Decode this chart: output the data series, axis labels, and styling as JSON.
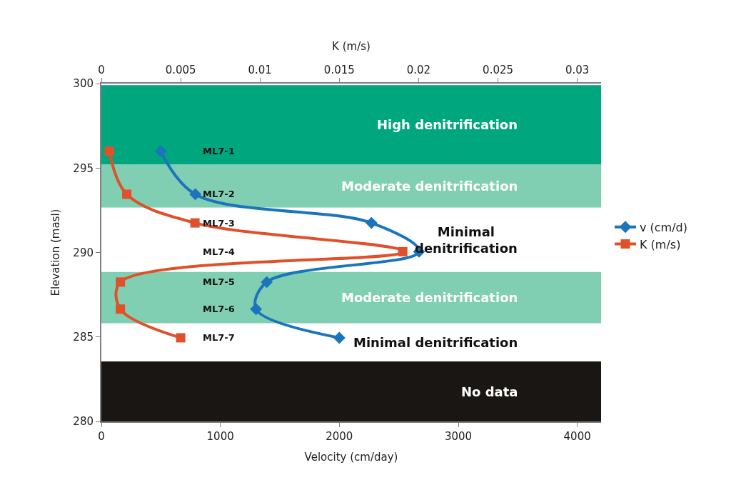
{
  "chart_data": {
    "type": "line",
    "orientation": "horizontal",
    "xlabel": "Velocity (cm/day)",
    "x2label": "K (m/s)",
    "ylabel": "Elevation (masl)",
    "xlim": [
      0,
      4200
    ],
    "xticks": [
      0,
      1000,
      2000,
      3000,
      4000
    ],
    "x2lim": [
      0,
      0.0315
    ],
    "x2ticks": [
      0,
      0.005,
      0.01,
      0.015,
      0.02,
      0.025,
      0.03
    ],
    "ylim": [
      280,
      300
    ],
    "yticks": [
      280,
      285,
      290,
      295,
      300
    ],
    "series": [
      {
        "name": "v (cm/d)",
        "color": "#1b75bc",
        "marker": "diamond",
        "x": [
          296,
          293.45,
          291.75,
          290.05,
          288.25,
          286.65,
          284.95
        ],
        "values": [
          500,
          790,
          2270,
          2670,
          1390,
          1300,
          2000
        ]
      },
      {
        "name": "K (m/s)",
        "color": "#e0502a",
        "marker": "square",
        "axis": "x2",
        "x": [
          296,
          293.45,
          291.75,
          290.05,
          288.25,
          286.65,
          284.95
        ],
        "values": [
          0.0005,
          0.0016,
          0.0059,
          0.019,
          0.0012,
          0.0012,
          0.005
        ]
      }
    ],
    "bands": [
      {
        "axis": "y",
        "from": 295.2,
        "to": 299.9,
        "label": "High denitrification",
        "color": "#00a77e"
      },
      {
        "axis": "y",
        "from": 292.65,
        "to": 295.2,
        "label": "Moderate denitrification",
        "color": "#80cfb3"
      },
      {
        "axis": "y",
        "from": 288.85,
        "to": 292.65,
        "label": "Minimal\ndenitrification",
        "color": "#ffffff"
      },
      {
        "axis": "y",
        "from": 285.8,
        "to": 288.85,
        "label": "Moderate denitrification",
        "color": "#80cfb3"
      },
      {
        "axis": "y",
        "from": 283.55,
        "to": 285.8,
        "label": "Minimal denitrification",
        "color": "#ffffff"
      },
      {
        "axis": "y",
        "from": 280,
        "to": 283.55,
        "label": "No data",
        "color": "#1a1613"
      }
    ],
    "annotations": [
      "ML7-1",
      "ML7-2",
      "ML7-3",
      "ML7-4",
      "ML7-5",
      "ML7-6",
      "ML7-7"
    ],
    "legend": "right",
    "grid": false,
    "line_style": "solid"
  }
}
